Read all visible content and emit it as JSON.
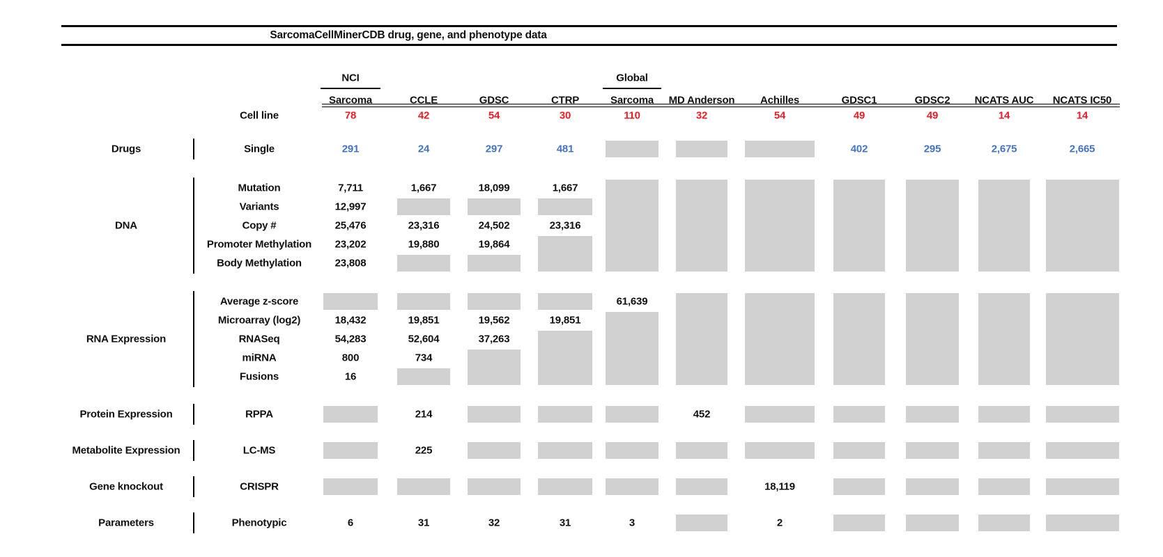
{
  "colors": {
    "cell_line_count_red": "#ed1c24",
    "drug_count_blue": "#4472c4",
    "no_data_gray": "#d1d1d1",
    "rule_black": "#000000"
  },
  "chart_data": {
    "type": "table",
    "title": "SarcomaCellMinerCDB drug, gene, and phenotype data",
    "nodata_token": "# means gray no-data box; #N spans N rows",
    "columns": [
      {
        "id": "nci-sarcoma",
        "top_label": "NCI",
        "label": "Sarcoma"
      },
      {
        "id": "ccle",
        "label": "CCLE"
      },
      {
        "id": "gdsc",
        "label": "GDSC"
      },
      {
        "id": "ctrp",
        "label": "CTRP"
      },
      {
        "id": "global-sarcoma",
        "top_label": "Global",
        "label": "Sarcoma"
      },
      {
        "id": "md-anderson",
        "label": "MD Anderson"
      },
      {
        "id": "achilles",
        "label": "Achilles"
      },
      {
        "id": "gdsc1",
        "label": "GDSC1"
      },
      {
        "id": "gdsc2",
        "label": "GDSC2"
      },
      {
        "id": "ncats-auc",
        "label": "NCATS AUC"
      },
      {
        "id": "ncats-ic50",
        "label": "NCATS IC50"
      }
    ],
    "rows": [
      {
        "id": "cell-line",
        "label": "Cell line",
        "color": "red",
        "cells": [
          "78",
          "42",
          "54",
          "30",
          "110",
          "32",
          "54",
          "49",
          "49",
          "14",
          "14"
        ]
      },
      {
        "id": "single",
        "label": "Single",
        "color": "blue",
        "cells": [
          "291",
          "24",
          "297",
          "481",
          "#",
          "#",
          "#",
          "402",
          "295",
          "2,675",
          "2,665"
        ]
      },
      {
        "id": "mutation",
        "label": "Mutation",
        "cells": [
          "7,711",
          "1,667",
          "18,099",
          "1,667",
          "#5",
          "#5",
          "#5",
          "#5",
          "#5",
          "#5",
          "#5"
        ]
      },
      {
        "id": "variants",
        "label": "Variants",
        "cells": [
          "12,997",
          "#",
          "#",
          "#",
          "",
          "",
          "",
          "",
          "",
          "",
          ""
        ]
      },
      {
        "id": "copy-number",
        "label": "Copy #",
        "cells": [
          "25,476",
          "23,316",
          "24,502",
          "23,316",
          "",
          "",
          "",
          "",
          "",
          "",
          ""
        ]
      },
      {
        "id": "promoter-methylation",
        "label": "Promoter Methylation",
        "cells": [
          "23,202",
          "19,880",
          "19,864",
          "#2",
          "",
          "",
          "",
          "",
          "",
          "",
          ""
        ]
      },
      {
        "id": "body-methylation",
        "label": "Body Methylation",
        "cells": [
          "23,808",
          "#",
          "#",
          "",
          "",
          "",
          "",
          "",
          "",
          "",
          ""
        ]
      },
      {
        "id": "average-z-score",
        "label": "Average z-score",
        "cells": [
          "#",
          "#",
          "#",
          "#",
          "61,639",
          "#5",
          "#5",
          "#5",
          "#5",
          "#5",
          "#5"
        ]
      },
      {
        "id": "microarray",
        "label": "Microarray (log2)",
        "cells": [
          "18,432",
          "19,851",
          "19,562",
          "19,851",
          "#4",
          "",
          "",
          "",
          "",
          "",
          ""
        ]
      },
      {
        "id": "rnaseq",
        "label": "RNASeq",
        "cells": [
          "54,283",
          "52,604",
          "37,263",
          "#3",
          "",
          "",
          "",
          "",
          "",
          "",
          ""
        ]
      },
      {
        "id": "mirna",
        "label": "miRNA",
        "cells": [
          "800",
          "734",
          "#2",
          "",
          "",
          "",
          "",
          "",
          "",
          "",
          ""
        ]
      },
      {
        "id": "fusions",
        "label": "Fusions",
        "cells": [
          "16",
          "#",
          "",
          "",
          "",
          "",
          "",
          "",
          "",
          "",
          ""
        ]
      },
      {
        "id": "rppa",
        "label": "RPPA",
        "cells": [
          "#",
          "214",
          "#",
          "#",
          "#",
          "452",
          "#",
          "#",
          "#",
          "#",
          "#"
        ]
      },
      {
        "id": "lc-ms",
        "label": "LC-MS",
        "cells": [
          "#",
          "225",
          "#",
          "#",
          "#",
          "#",
          "#",
          "#",
          "#",
          "#",
          "#"
        ]
      },
      {
        "id": "crispr",
        "label": "CRISPR",
        "cells": [
          "#",
          "#",
          "#",
          "#",
          "#",
          "#",
          "18,119",
          "#",
          "#",
          "#",
          "#"
        ]
      },
      {
        "id": "phenotypic",
        "label": "Phenotypic",
        "cells": [
          "6",
          "31",
          "32",
          "31",
          "3",
          "#",
          "2",
          "#",
          "#",
          "#",
          "#"
        ]
      }
    ],
    "row_groups": [
      {
        "label": "Drugs",
        "row_start": 1,
        "row_end": 1
      },
      {
        "label": "DNA",
        "row_start": 2,
        "row_end": 6
      },
      {
        "label": "RNA Expression",
        "row_start": 7,
        "row_end": 11
      },
      {
        "label": "Protein Expression",
        "row_start": 12,
        "row_end": 12
      },
      {
        "label": "Metabolite Expression",
        "row_start": 13,
        "row_end": 13
      },
      {
        "label": "Gene knockout",
        "row_start": 14,
        "row_end": 14
      },
      {
        "label": "Parameters",
        "row_start": 15,
        "row_end": 15
      }
    ]
  }
}
